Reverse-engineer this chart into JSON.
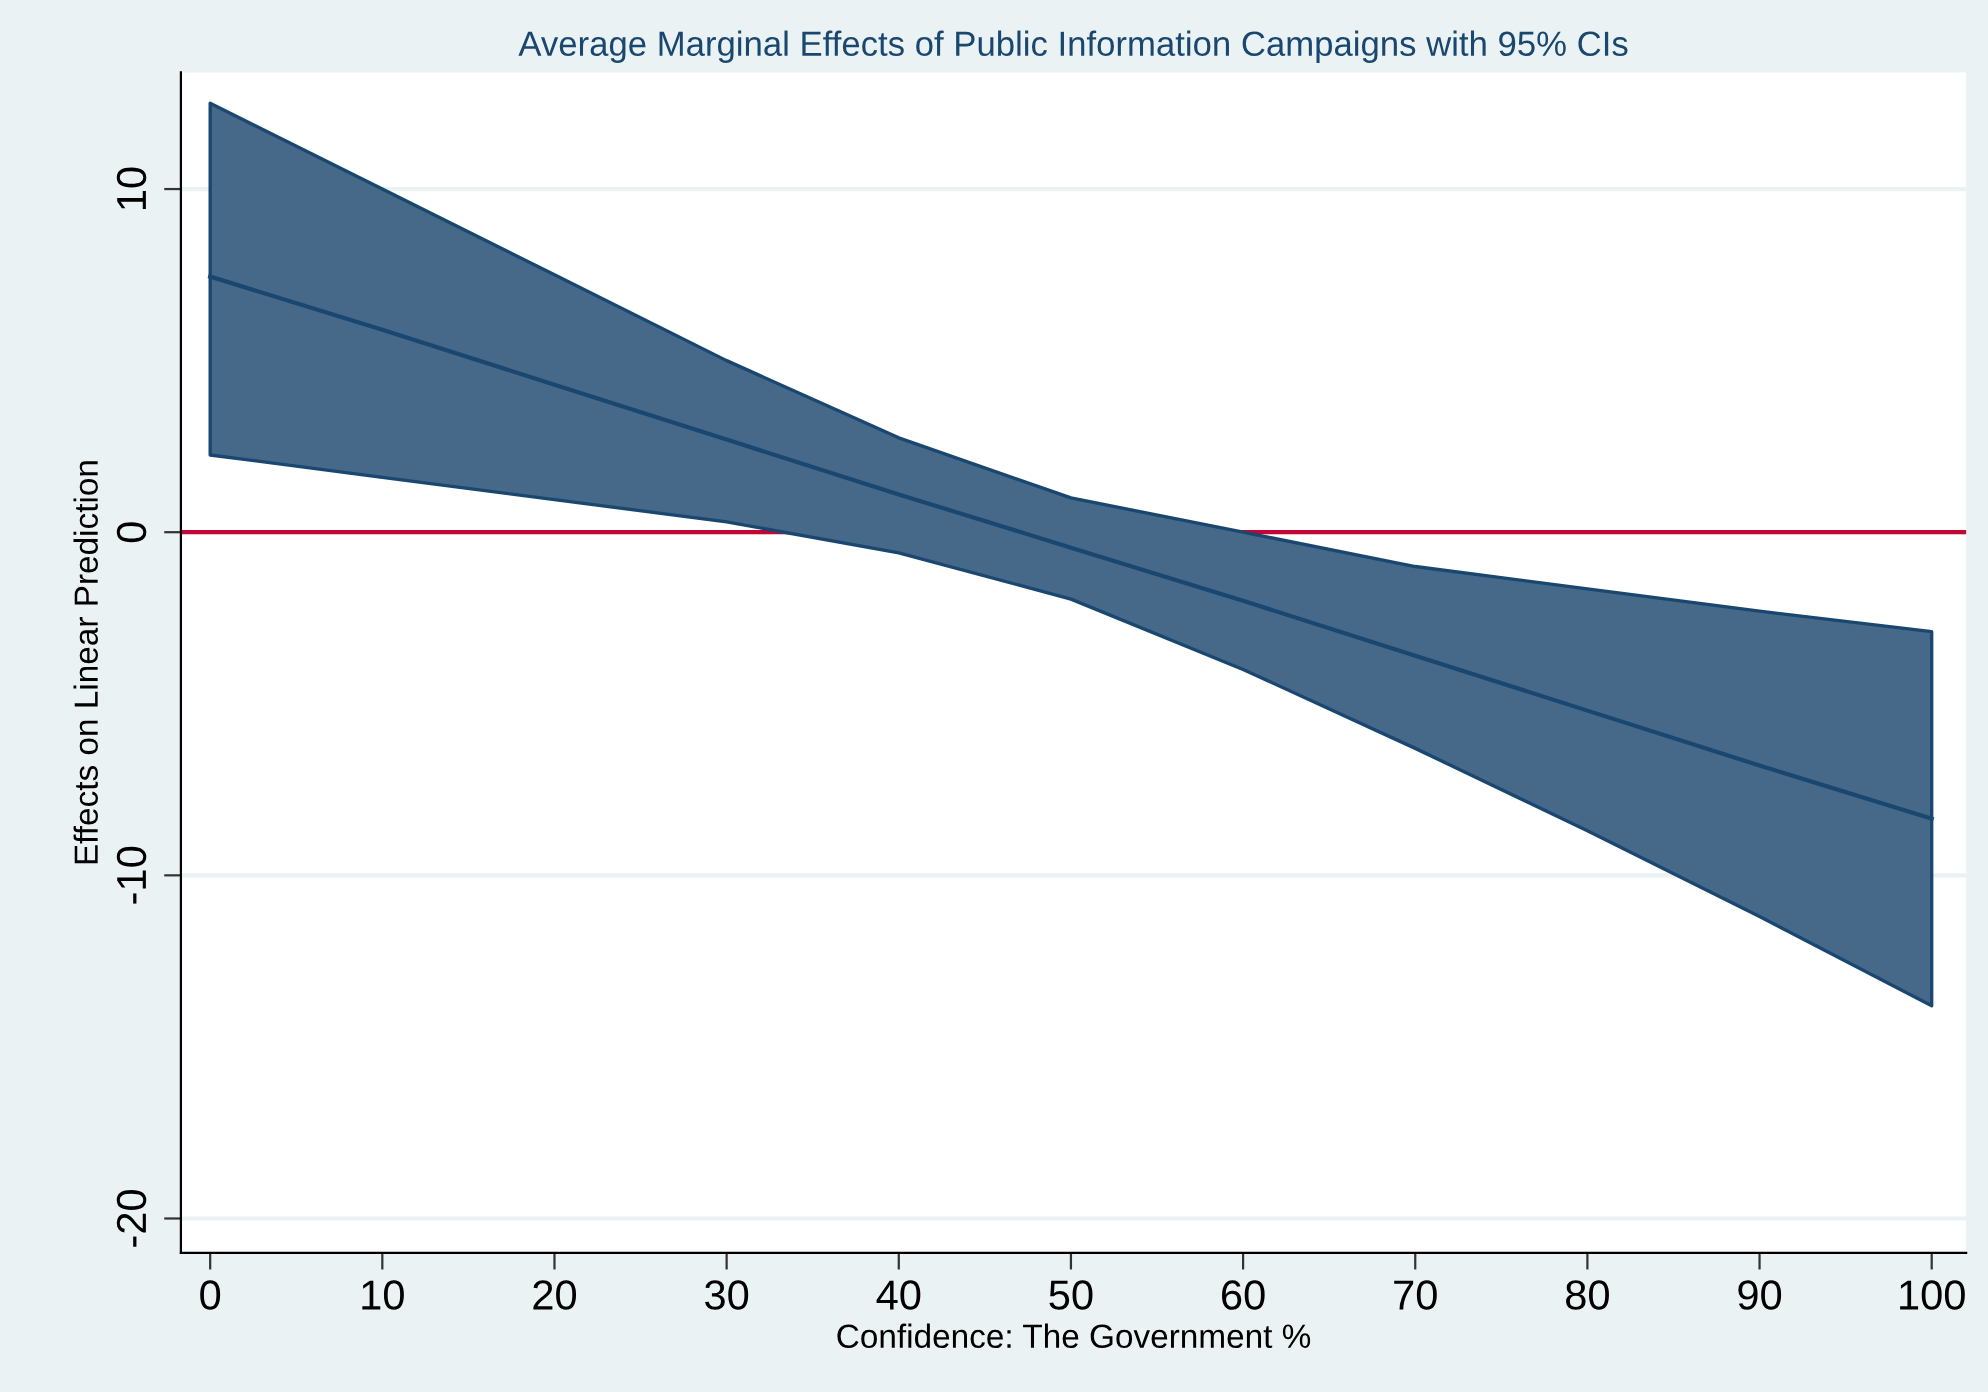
{
  "chart_data": {
    "type": "line",
    "title": "Average Marginal Effects of Public Information Campaigns with 95% CIs",
    "xlabel": "Confidence: The Government %",
    "ylabel": "Effects on Linear Prediction",
    "x": [
      0,
      10,
      20,
      30,
      40,
      50,
      60,
      70,
      80,
      90,
      100
    ],
    "series": [
      {
        "color": "#1a476f",
        "values": [
          7.45,
          5.9,
          4.3,
          2.7,
          1.1,
          -0.45,
          -2.0,
          -3.6,
          -5.2,
          -6.8,
          -8.35
        ],
        "lower": [
          2.25,
          1.6,
          0.95,
          0.3,
          -0.6,
          -1.95,
          -4.0,
          -6.3,
          -8.7,
          -11.2,
          -13.8
        ],
        "upper": [
          12.5,
          10.0,
          7.5,
          5.0,
          2.75,
          1.0,
          0.0,
          -1.0,
          -1.65,
          -2.3,
          -2.9
        ]
      }
    ],
    "xlim": [
      -1.7,
      102
    ],
    "xticks": [
      0,
      10,
      20,
      30,
      40,
      50,
      60,
      70,
      80,
      90,
      100
    ],
    "ylim": [
      -21,
      13.4
    ],
    "yticks": [
      -20,
      -10,
      0,
      10
    ],
    "ref_lines": [
      {
        "axis": "y",
        "value": 0,
        "color": "#c10534"
      }
    ],
    "grid": "y",
    "marker": "none",
    "line_style": "solid"
  }
}
